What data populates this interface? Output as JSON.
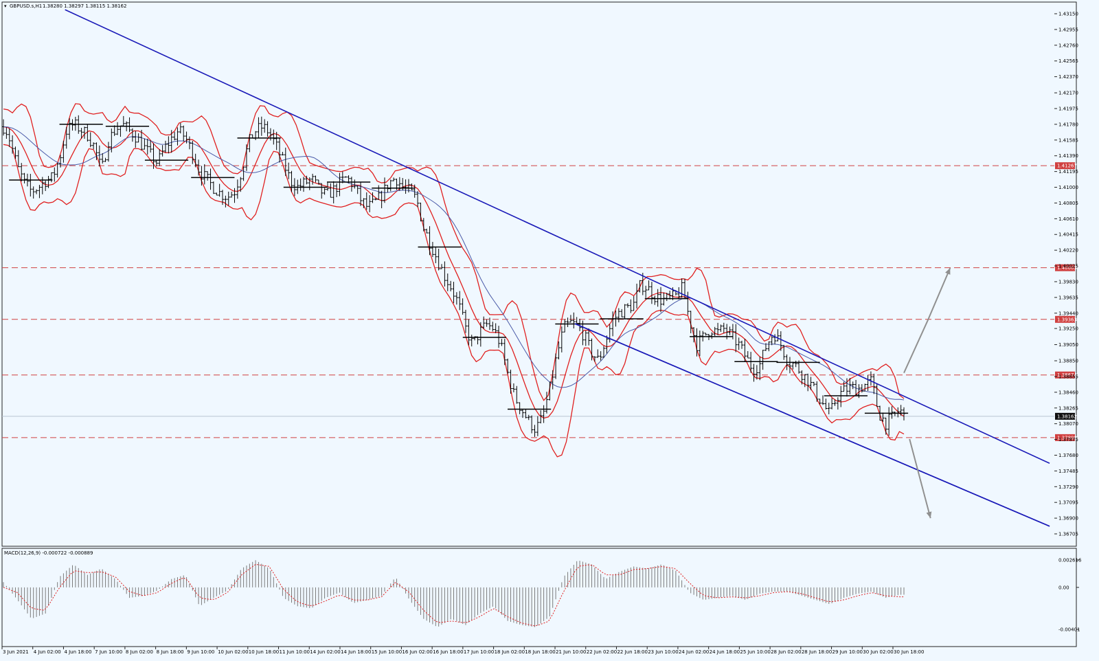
{
  "chart_data": [
    {
      "type": "line",
      "name": "price",
      "title": "GBPUSD.s,H1",
      "header_values": "1.38280 1.38297 1.38115 1.38162",
      "current_price": "1.38162",
      "yticks": [
        "1.43150",
        "1.42955",
        "1.42760",
        "1.42565",
        "1.42370",
        "1.42170",
        "1.41975",
        "1.41780",
        "1.41585",
        "1.41390",
        "1.41195",
        "1.41000",
        "1.40805",
        "1.40610",
        "1.40415",
        "1.40220",
        "1.40025",
        "1.39830",
        "1.39635",
        "1.39440",
        "1.39250",
        "1.39050",
        "1.38850",
        "1.38655",
        "1.38460",
        "1.38265",
        "1.38070",
        "1.37875",
        "1.37680",
        "1.37485",
        "1.37290",
        "1.37095",
        "1.36900",
        "1.36705"
      ],
      "ylim": [
        1.36705,
        1.4315
      ],
      "xticks": [
        "3 Jun 2021",
        "4 Jun 02:00",
        "4 Jun 18:00",
        "7 Jun 10:00",
        "8 Jun 02:00",
        "8 Jun 18:00",
        "9 Jun 10:00",
        "10 Jun 02:00",
        "10 Jun 18:00",
        "11 Jun 10:00",
        "14 Jun 02:00",
        "14 Jun 18:00",
        "15 Jun 10:00",
        "16 Jun 02:00",
        "16 Jun 18:00",
        "17 Jun 10:00",
        "18 Jun 02:00",
        "18 Jun 18:00",
        "21 Jun 10:00",
        "22 Jun 02:00",
        "22 Jun 18:00",
        "23 Jun 10:00",
        "24 Jun 02:00",
        "24 Jun 18:00",
        "25 Jun 10:00",
        "28 Jun 02:00",
        "28 Jun 18:00",
        "29 Jun 10:00",
        "30 Jun 02:00",
        "30 Jun 18:00"
      ],
      "horizontal_levels": [
        {
          "price": 1.41267,
          "label": "1.41267"
        },
        {
          "price": 1.40003,
          "label": "1.40003"
        },
        {
          "price": 1.39363,
          "label": "1.39363"
        },
        {
          "price": 1.38674,
          "label": "1.38674"
        },
        {
          "price": 1.37898,
          "label": "1.37898"
        }
      ],
      "close_path": [
        [
          0,
          1.4175
        ],
        [
          0.3,
          1.4168
        ],
        [
          0.6,
          1.415
        ],
        [
          1,
          1.4125
        ],
        [
          1.5,
          1.4105
        ],
        [
          2,
          1.4095
        ],
        [
          2.5,
          1.41
        ],
        [
          3,
          1.4108
        ],
        [
          3.5,
          1.4112
        ],
        [
          4,
          1.4135
        ],
        [
          4.5,
          1.417
        ],
        [
          5,
          1.4178
        ],
        [
          5.5,
          1.4172
        ],
        [
          6,
          1.4165
        ],
        [
          6.5,
          1.415
        ],
        [
          7,
          1.412
        ],
        [
          7.5,
          1.4158
        ],
        [
          8,
          1.4172
        ],
        [
          8.5,
          1.4178
        ],
        [
          9,
          1.417
        ],
        [
          9.5,
          1.4162
        ],
        [
          10,
          1.415
        ],
        [
          10.5,
          1.414
        ],
        [
          11,
          1.413
        ],
        [
          11.5,
          1.4148
        ],
        [
          12,
          1.416
        ],
        [
          12.5,
          1.417
        ],
        [
          13,
          1.4162
        ],
        [
          13.5,
          1.4142
        ],
        [
          14,
          1.412
        ],
        [
          14.5,
          1.411
        ],
        [
          15,
          1.41
        ],
        [
          15.5,
          1.4092
        ],
        [
          16,
          1.4088
        ],
        [
          16.5,
          1.4095
        ],
        [
          17,
          1.412
        ],
        [
          17.5,
          1.4155
        ],
        [
          18,
          1.417
        ],
        [
          18.5,
          1.4175
        ],
        [
          19,
          1.4168
        ],
        [
          19.5,
          1.415
        ],
        [
          20,
          1.413
        ],
        [
          20.5,
          1.4108
        ],
        [
          21,
          1.41
        ],
        [
          21.5,
          1.4105
        ],
        [
          22,
          1.411
        ],
        [
          22.5,
          1.4098
        ],
        [
          23,
          1.409
        ],
        [
          23.5,
          1.4095
        ],
        [
          24,
          1.4105
        ],
        [
          24.5,
          1.4112
        ],
        [
          25,
          1.4102
        ],
        [
          25.5,
          1.4085
        ],
        [
          26,
          1.4075
        ],
        [
          26.5,
          1.408
        ],
        [
          27,
          1.409
        ],
        [
          27.5,
          1.4105
        ],
        [
          28,
          1.4112
        ],
        [
          28.5,
          1.41
        ],
        [
          29,
          1.4095
        ],
        [
          29.5,
          1.4085
        ],
        [
          30,
          1.405
        ],
        [
          30.5,
          1.403
        ],
        [
          31,
          1.401
        ],
        [
          31.5,
          1.399
        ],
        [
          32,
          1.3975
        ],
        [
          32.5,
          1.3955
        ],
        [
          33,
          1.3925
        ],
        [
          33.5,
          1.3905
        ],
        [
          34,
          1.392
        ],
        [
          34.5,
          1.393
        ],
        [
          35,
          1.3925
        ],
        [
          35.5,
          1.3905
        ],
        [
          36,
          1.387
        ],
        [
          36.5,
          1.384
        ],
        [
          37,
          1.3825
        ],
        [
          37.5,
          1.381
        ],
        [
          38,
          1.38
        ],
        [
          38.5,
          1.3815
        ],
        [
          39,
          1.385
        ],
        [
          39.5,
          1.389
        ],
        [
          40,
          1.3925
        ],
        [
          40.5,
          1.3932
        ],
        [
          41,
          1.3928
        ],
        [
          41.5,
          1.3915
        ],
        [
          42,
          1.3895
        ],
        [
          42.5,
          1.3885
        ],
        [
          43,
          1.391
        ],
        [
          43.5,
          1.3935
        ],
        [
          44,
          1.3945
        ],
        [
          44.5,
          1.395
        ],
        [
          45,
          1.3955
        ],
        [
          45.5,
          1.398
        ],
        [
          46,
          1.3975
        ],
        [
          46.5,
          1.3965
        ],
        [
          47,
          1.396
        ],
        [
          47.5,
          1.3962
        ],
        [
          48,
          1.3965
        ],
        [
          48.5,
          1.3975
        ],
        [
          49,
          1.3935
        ],
        [
          49.5,
          1.3905
        ],
        [
          50,
          1.3915
        ],
        [
          50.5,
          1.3925
        ],
        [
          51,
          1.392
        ],
        [
          51.5,
          1.3925
        ],
        [
          52,
          1.3915
        ],
        [
          52.5,
          1.3905
        ],
        [
          53,
          1.389
        ],
        [
          53.5,
          1.3875
        ],
        [
          54,
          1.388
        ],
        [
          54.5,
          1.3905
        ],
        [
          55,
          1.392
        ],
        [
          55.5,
          1.3905
        ],
        [
          56,
          1.3885
        ],
        [
          56.5,
          1.388
        ],
        [
          57,
          1.387
        ],
        [
          57.5,
          1.386
        ],
        [
          58,
          1.3845
        ],
        [
          58.5,
          1.3832
        ],
        [
          59,
          1.3818
        ],
        [
          59.5,
          1.384
        ],
        [
          60,
          1.3848
        ],
        [
          60.5,
          1.3852
        ],
        [
          61,
          1.385
        ],
        [
          61.5,
          1.3855
        ],
        [
          62,
          1.386
        ],
        [
          62.5,
          1.382
        ],
        [
          63,
          1.3808
        ],
        [
          63.5,
          1.3815
        ],
        [
          64,
          1.3825
        ],
        [
          64.3,
          1.3816
        ]
      ]
    },
    {
      "type": "bar",
      "name": "macd",
      "title": "MACD(12,26,9) -0.000722 -0.000889",
      "yticks": [
        "0.002616",
        "0.00",
        "-0.00401"
      ],
      "ylim": [
        -0.00401,
        0.002616
      ],
      "histogram_path": [
        [
          0,
          0.0005
        ],
        [
          1,
          -0.0012
        ],
        [
          2,
          -0.003
        ],
        [
          3,
          -0.0025
        ],
        [
          4,
          0.001
        ],
        [
          5,
          0.0022
        ],
        [
          6,
          0.0012
        ],
        [
          7,
          0.0018
        ],
        [
          8,
          0.0008
        ],
        [
          9,
          -0.001
        ],
        [
          10,
          -0.0008
        ],
        [
          11,
          -0.0003
        ],
        [
          12,
          0.0008
        ],
        [
          13,
          0.0012
        ],
        [
          14,
          -0.0018
        ],
        [
          15,
          -0.001
        ],
        [
          16,
          -0.0003
        ],
        [
          17,
          0.0018
        ],
        [
          18,
          0.0026
        ],
        [
          19,
          0.0018
        ],
        [
          20,
          -0.001
        ],
        [
          21,
          -0.0018
        ],
        [
          22,
          -0.002
        ],
        [
          23,
          -0.001
        ],
        [
          24,
          -0.0005
        ],
        [
          25,
          -0.0015
        ],
        [
          26,
          -0.0012
        ],
        [
          27,
          -0.0008
        ],
        [
          28,
          0.001
        ],
        [
          29,
          -0.0012
        ],
        [
          30,
          -0.003
        ],
        [
          31,
          -0.0038
        ],
        [
          32,
          -0.003
        ],
        [
          33,
          -0.0036
        ],
        [
          34,
          -0.0025
        ],
        [
          35,
          -0.0018
        ],
        [
          36,
          -0.0032
        ],
        [
          37,
          -0.0036
        ],
        [
          38,
          -0.0038
        ],
        [
          39,
          -0.0028
        ],
        [
          40,
          0.001
        ],
        [
          41,
          0.0026
        ],
        [
          42,
          0.0022
        ],
        [
          43,
          0.0008
        ],
        [
          44,
          0.0015
        ],
        [
          45,
          0.002
        ],
        [
          46,
          0.0018
        ],
        [
          47,
          0.0022
        ],
        [
          48,
          0.0016
        ],
        [
          49,
          -0.0005
        ],
        [
          50,
          -0.0012
        ],
        [
          51,
          -0.001
        ],
        [
          52,
          -0.0008
        ],
        [
          53,
          -0.0012
        ],
        [
          54,
          -0.0006
        ],
        [
          55,
          -0.0004
        ],
        [
          56,
          -0.0004
        ],
        [
          57,
          -0.0008
        ],
        [
          58,
          -0.0012
        ],
        [
          59,
          -0.0016
        ],
        [
          60,
          -0.001
        ],
        [
          61,
          -0.0006
        ],
        [
          62,
          -0.0004
        ],
        [
          63,
          -0.001
        ],
        [
          64,
          -0.0007
        ]
      ],
      "signal_path": [
        [
          0,
          0.0
        ],
        [
          1,
          -0.0005
        ],
        [
          2,
          -0.002
        ],
        [
          3,
          -0.0022
        ],
        [
          4,
          0.0
        ],
        [
          5,
          0.0016
        ],
        [
          6,
          0.0014
        ],
        [
          7,
          0.0015
        ],
        [
          8,
          0.001
        ],
        [
          9,
          -0.0004
        ],
        [
          10,
          -0.0008
        ],
        [
          11,
          -0.0005
        ],
        [
          12,
          0.0004
        ],
        [
          13,
          0.001
        ],
        [
          14,
          -0.001
        ],
        [
          15,
          -0.0012
        ],
        [
          16,
          -0.0005
        ],
        [
          17,
          0.0012
        ],
        [
          18,
          0.0022
        ],
        [
          19,
          0.002
        ],
        [
          20,
          -0.0002
        ],
        [
          21,
          -0.0014
        ],
        [
          22,
          -0.0018
        ],
        [
          23,
          -0.0013
        ],
        [
          24,
          -0.0007
        ],
        [
          25,
          -0.0012
        ],
        [
          26,
          -0.0012
        ],
        [
          27,
          -0.0009
        ],
        [
          28,
          0.0005
        ],
        [
          29,
          -0.0005
        ],
        [
          30,
          -0.0022
        ],
        [
          31,
          -0.0034
        ],
        [
          32,
          -0.0032
        ],
        [
          33,
          -0.0034
        ],
        [
          34,
          -0.0028
        ],
        [
          35,
          -0.002
        ],
        [
          36,
          -0.0028
        ],
        [
          37,
          -0.0034
        ],
        [
          38,
          -0.0037
        ],
        [
          39,
          -0.0032
        ],
        [
          40,
          -0.0004
        ],
        [
          41,
          0.002
        ],
        [
          42,
          0.0022
        ],
        [
          43,
          0.0012
        ],
        [
          44,
          0.0012
        ],
        [
          45,
          0.0017
        ],
        [
          46,
          0.0018
        ],
        [
          47,
          0.002
        ],
        [
          48,
          0.0018
        ],
        [
          49,
          0.0004
        ],
        [
          50,
          -0.0008
        ],
        [
          51,
          -0.001
        ],
        [
          52,
          -0.0009
        ],
        [
          53,
          -0.001
        ],
        [
          54,
          -0.0008
        ],
        [
          55,
          -0.0005
        ],
        [
          56,
          -0.0004
        ],
        [
          57,
          -0.0006
        ],
        [
          58,
          -0.001
        ],
        [
          59,
          -0.0014
        ],
        [
          60,
          -0.0012
        ],
        [
          61,
          -0.0008
        ],
        [
          62,
          -0.0005
        ],
        [
          63,
          -0.0008
        ],
        [
          64,
          -0.0009
        ]
      ]
    }
  ],
  "colors": {
    "background": "#f0f8ff",
    "bollinger": "#e02020",
    "trendline": "#1a1ab8",
    "moving_average": "#4a5aa8",
    "level": "#d04040",
    "candles": "#000000",
    "histogram": "#7a7a7a",
    "signal": "#e02020",
    "projection_arrow": "#909090"
  }
}
